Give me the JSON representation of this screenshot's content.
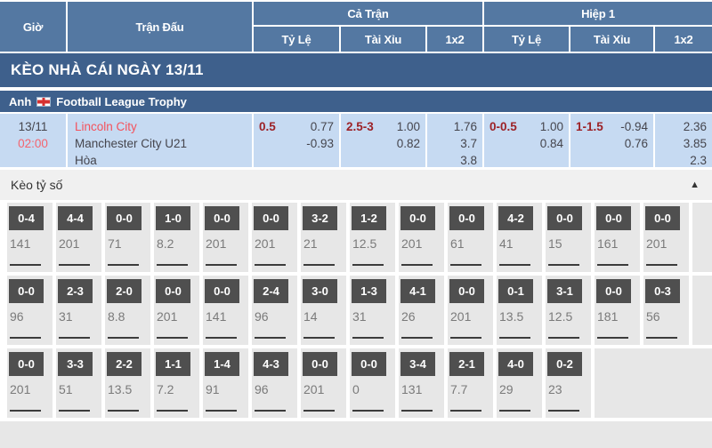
{
  "header": {
    "col_time": "Giờ",
    "col_match": "Trận Đấu",
    "group_full": "Cả Trận",
    "group_half": "Hiệp 1",
    "sub_handicap": "Tỷ Lệ",
    "sub_over_under": "Tài Xỉu",
    "sub_1x2": "1x2"
  },
  "banner": {
    "title": "KÈO NHÀ CÁI NGÀY 13/11"
  },
  "league": {
    "country": "Anh",
    "flag_icon": "england-flag",
    "name": "Football League Trophy"
  },
  "match": {
    "date": "13/11",
    "time": "02:00",
    "home": "Lincoln City",
    "away": "Manchester City U21",
    "draw_label": "Hòa",
    "full_time": {
      "handicap_line": "0.5",
      "handicap_odds_1": "0.77",
      "handicap_odds_2": "-0.93",
      "ou_line": "2.5-3",
      "ou_odds_1": "1.00",
      "ou_odds_2": "0.82",
      "x12_1": "1.76",
      "x12_2": "3.7",
      "x12_3": "3.8"
    },
    "half_time": {
      "handicap_line": "0-0.5",
      "handicap_odds_1": "1.00",
      "handicap_odds_2": "0.84",
      "ou_line": "1-1.5",
      "ou_odds_1": "-0.94",
      "ou_odds_2": "0.76",
      "x12_1": "2.36",
      "x12_2": "3.85",
      "x12_3": "2.3"
    }
  },
  "score_section": {
    "title": "Kèo tỷ số",
    "collapse_icon": "▲",
    "rows": [
      [
        {
          "score": "0-4",
          "odds": "141"
        },
        {
          "score": "4-4",
          "odds": "201"
        },
        {
          "score": "0-0",
          "odds": "71"
        },
        {
          "score": "1-0",
          "odds": "8.2"
        },
        {
          "score": "0-0",
          "odds": "201"
        },
        {
          "score": "0-0",
          "odds": "201"
        },
        {
          "score": "3-2",
          "odds": "21"
        },
        {
          "score": "1-2",
          "odds": "12.5"
        },
        {
          "score": "0-0",
          "odds": "201"
        },
        {
          "score": "0-0",
          "odds": "61"
        },
        {
          "score": "4-2",
          "odds": "41"
        },
        {
          "score": "0-0",
          "odds": "15"
        },
        {
          "score": "0-0",
          "odds": "161"
        },
        {
          "score": "0-0",
          "odds": "201"
        }
      ],
      [
        {
          "score": "0-0",
          "odds": "96"
        },
        {
          "score": "2-3",
          "odds": "31"
        },
        {
          "score": "2-0",
          "odds": "8.8"
        },
        {
          "score": "0-0",
          "odds": "201"
        },
        {
          "score": "0-0",
          "odds": "141"
        },
        {
          "score": "2-4",
          "odds": "96"
        },
        {
          "score": "3-0",
          "odds": "14"
        },
        {
          "score": "1-3",
          "odds": "31"
        },
        {
          "score": "4-1",
          "odds": "26"
        },
        {
          "score": "0-0",
          "odds": "201"
        },
        {
          "score": "0-1",
          "odds": "13.5"
        },
        {
          "score": "3-1",
          "odds": "12.5"
        },
        {
          "score": "0-0",
          "odds": "181"
        },
        {
          "score": "0-3",
          "odds": "56"
        }
      ],
      [
        {
          "score": "0-0",
          "odds": "201"
        },
        {
          "score": "3-3",
          "odds": "51"
        },
        {
          "score": "2-2",
          "odds": "13.5"
        },
        {
          "score": "1-1",
          "odds": "7.2"
        },
        {
          "score": "1-4",
          "odds": "91"
        },
        {
          "score": "4-3",
          "odds": "96"
        },
        {
          "score": "0-0",
          "odds": "201"
        },
        {
          "score": "0-0",
          "odds": "0"
        },
        {
          "score": "3-4",
          "odds": "131"
        },
        {
          "score": "2-1",
          "odds": "7.7"
        },
        {
          "score": "4-0",
          "odds": "29"
        },
        {
          "score": "0-2",
          "odds": "23"
        }
      ]
    ]
  }
}
